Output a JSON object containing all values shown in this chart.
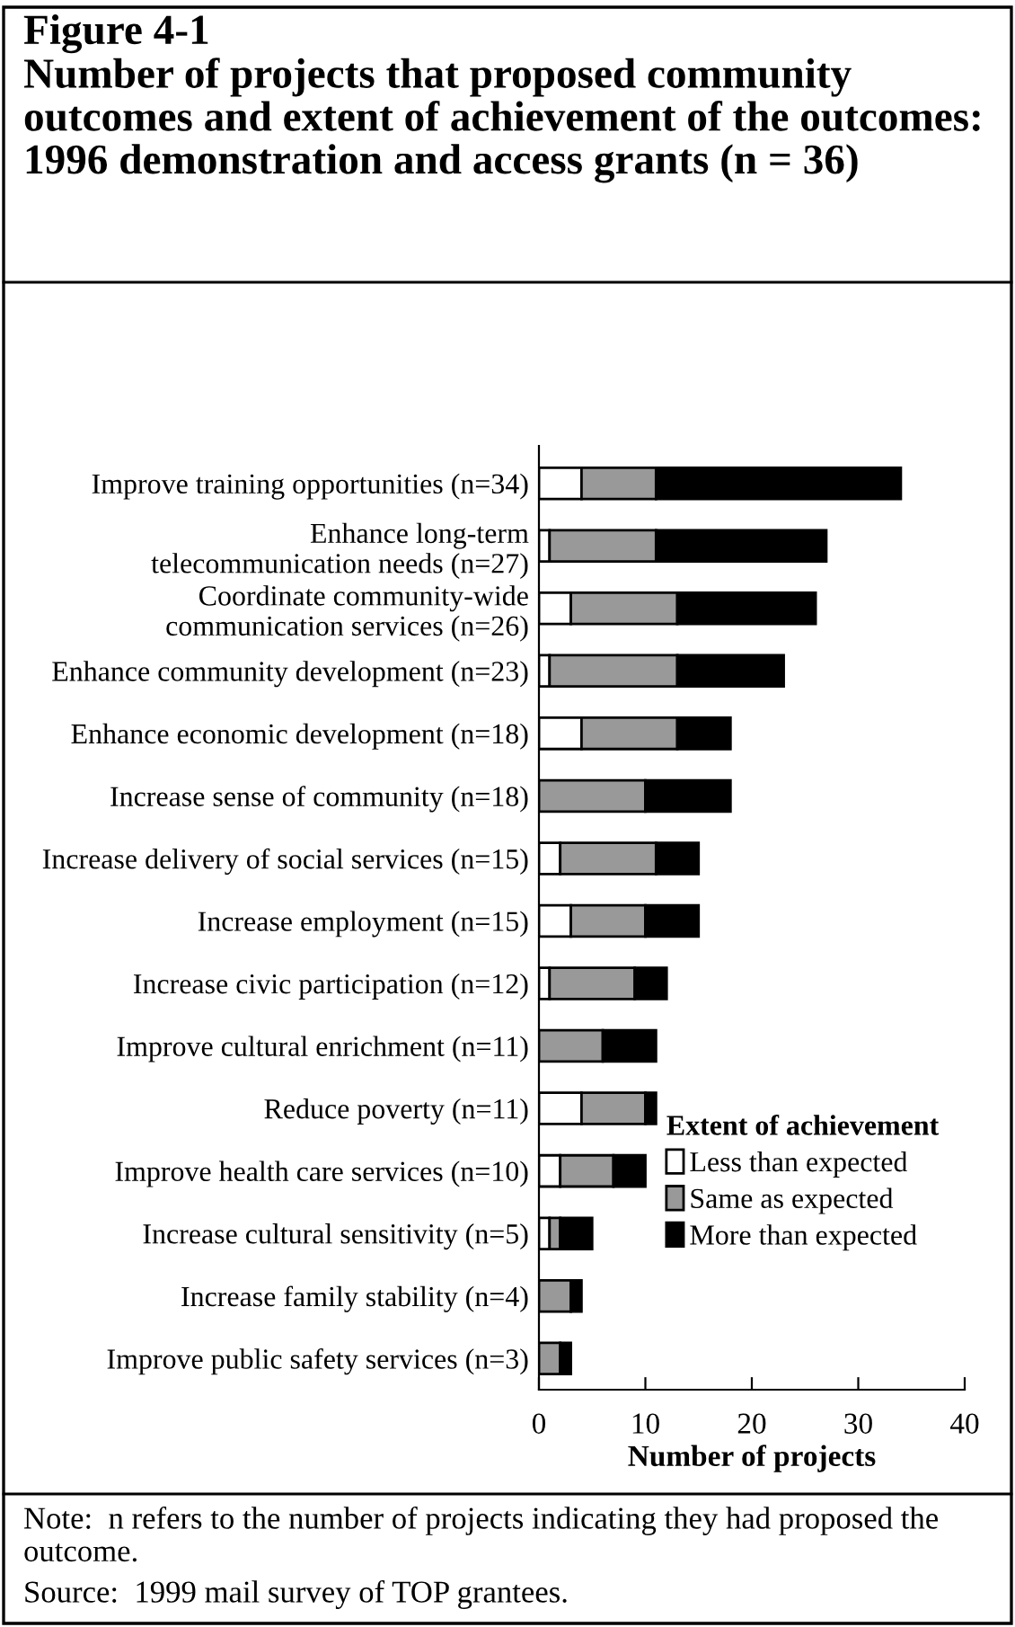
{
  "chart_data": {
    "type": "bar",
    "orientation": "horizontal",
    "stacked": true,
    "title": "Figure 4-1\nNumber of projects that proposed community outcomes and extent of achievement of the outcomes:  1996 demonstration and access grants (n = 36)",
    "xlabel": "Number of projects",
    "legend_title": "Extent of achievement",
    "categories": [
      "Improve training opportunities (n=34)",
      "Enhance long-term\ntelecommunication needs (n=27)",
      "Coordinate community-wide\ncommunication services (n=26)",
      "Enhance community development (n=23)",
      "Enhance economic development (n=18)",
      "Increase sense of community (n=18)",
      "Increase delivery of social services (n=15)",
      "Increase employment (n=15)",
      "Increase civic participation (n=12)",
      "Improve cultural enrichment (n=11)",
      "Reduce poverty (n=11)",
      "Improve health care services (n=10)",
      "Increase cultural sensitivity (n=5)",
      "Increase family stability (n=4)",
      "Improve public safety services (n=3)"
    ],
    "series": [
      {
        "name": "Less than expected",
        "color": "#ffffff",
        "values": [
          4,
          1,
          3,
          1,
          4,
          0,
          2,
          3,
          1,
          0,
          4,
          2,
          1,
          0,
          0
        ]
      },
      {
        "name": "Same as expected",
        "color": "#999999",
        "values": [
          7,
          10,
          10,
          12,
          9,
          10,
          9,
          7,
          8,
          6,
          6,
          5,
          1,
          3,
          2
        ]
      },
      {
        "name": "More than expected",
        "color": "#000000",
        "values": [
          23,
          16,
          13,
          10,
          5,
          8,
          4,
          5,
          3,
          5,
          1,
          3,
          3,
          1,
          1
        ]
      }
    ],
    "xlim": [
      0,
      40
    ],
    "xticks": [
      0,
      10,
      20,
      30,
      40
    ],
    "legend": "lower right",
    "grid": false,
    "annotations": [
      "Note:  n refers to the number of projects indicating they had proposed the outcome.",
      "Source:  1999 mail survey of TOP grantees."
    ]
  }
}
